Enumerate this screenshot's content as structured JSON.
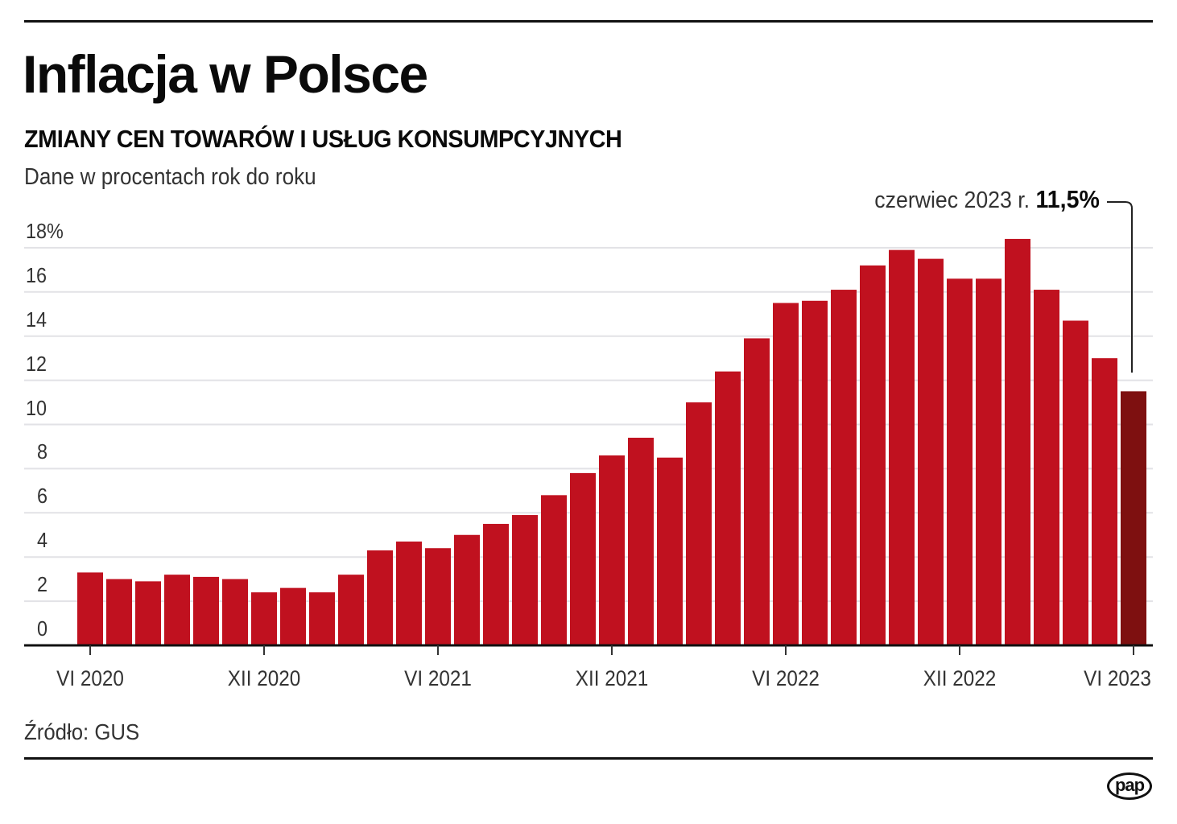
{
  "header": {
    "title": "Inflacja w Polsce",
    "subtitle": "ZMIANY CEN TOWARÓW I USŁUG KONSUMPCYJNYCH",
    "unit_note": "Dane w procentach rok do roku"
  },
  "annotation": {
    "label": "czerwiec 2023 r.",
    "value": "11,5%"
  },
  "footer": {
    "source": "Źródło: GUS",
    "logo": "pap"
  },
  "colors": {
    "bar": "#c0111f",
    "highlight_bar": "#7e1010",
    "grid": "#e2e2e6",
    "axis": "#111111"
  },
  "chart_data": {
    "type": "bar",
    "title": "Inflacja w Polsce",
    "subtitle": "ZMIANY CEN TOWARÓW I USŁUG KONSUMPCYJNYCH",
    "ylabel": "Dane w procentach rok do roku",
    "xlabel": "",
    "ylim": [
      0,
      18
    ],
    "yticks": [
      "0",
      "2",
      "4",
      "6",
      "8",
      "10",
      "12",
      "14",
      "16",
      "18%"
    ],
    "grid": true,
    "legend": "none",
    "x_tick_labels": [
      "VI 2020",
      "XII 2020",
      "VI 2021",
      "XII 2021",
      "VI 2022",
      "XII 2022",
      "VI 2023"
    ],
    "categories": [
      "VI 2020",
      "VII 2020",
      "VIII 2020",
      "IX 2020",
      "X 2020",
      "XI 2020",
      "XII 2020",
      "I 2021",
      "II 2021",
      "III 2021",
      "IV 2021",
      "V 2021",
      "VI 2021",
      "VII 2021",
      "VIII 2021",
      "IX 2021",
      "X 2021",
      "XI 2021",
      "XII 2021",
      "I 2022",
      "II 2022",
      "III 2022",
      "IV 2022",
      "V 2022",
      "VI 2022",
      "VII 2022",
      "VIII 2022",
      "IX 2022",
      "X 2022",
      "XI 2022",
      "XII 2022",
      "I 2023",
      "II 2023",
      "III 2023",
      "IV 2023",
      "V 2023",
      "VI 2023"
    ],
    "values": [
      3.3,
      3.0,
      2.9,
      3.2,
      3.1,
      3.0,
      2.4,
      2.6,
      2.4,
      3.2,
      4.3,
      4.7,
      4.4,
      5.0,
      5.5,
      5.9,
      6.8,
      7.8,
      8.6,
      9.4,
      8.5,
      11.0,
      12.4,
      13.9,
      15.5,
      15.6,
      16.1,
      17.2,
      17.9,
      17.5,
      16.6,
      16.6,
      18.4,
      16.1,
      14.7,
      13.0,
      11.5
    ],
    "highlight": {
      "category": "VI 2023",
      "value": 11.5,
      "annotation": "czerwiec 2023 r. 11,5%"
    },
    "source": "Źródło: GUS"
  }
}
